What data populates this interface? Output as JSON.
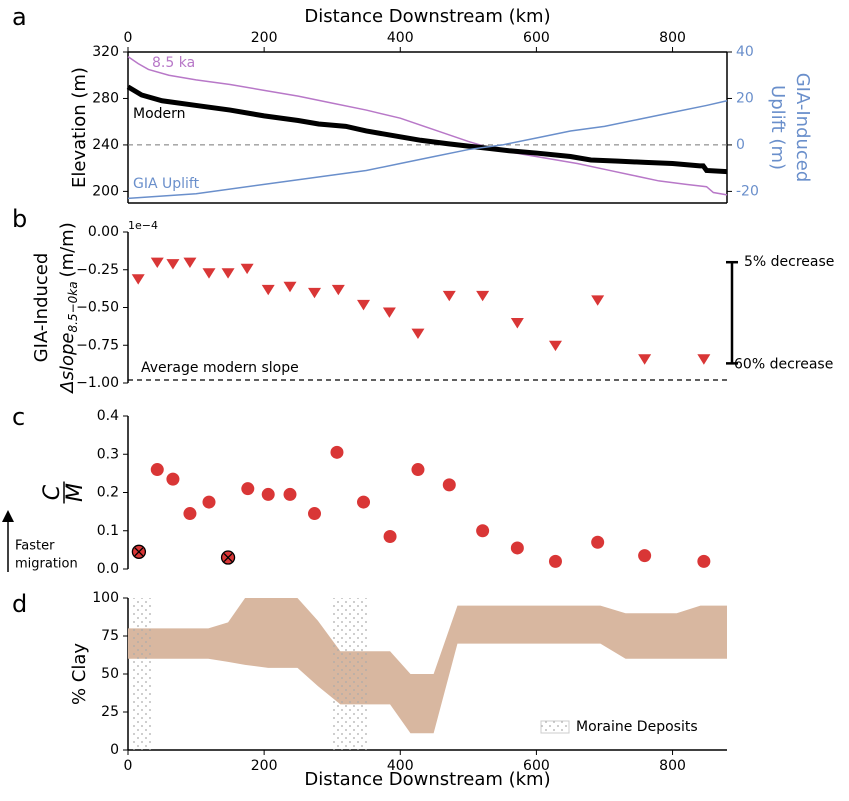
{
  "chart_data": [
    {
      "type": "line",
      "panel_label": "a",
      "xlabel": "Distance Downstream (km)",
      "xlim": [
        0,
        880
      ],
      "xticks": [
        0,
        200,
        400,
        600,
        800
      ],
      "xaxis_position": "top",
      "ylabel": "Elevation (m)",
      "ylim": [
        190,
        320
      ],
      "yticks": [
        200,
        240,
        280,
        320
      ],
      "y2label": [
        "GIA-Induced",
        "Uplift (m)"
      ],
      "y2lim": [
        -25,
        40
      ],
      "y2ticks": [
        -20,
        0,
        20,
        40
      ],
      "y2color": "#6a8fcb",
      "hline": 240,
      "series": [
        {
          "name": "8.5 ka",
          "color": "#b878c8",
          "width": 1.5,
          "x": [
            0,
            15,
            30,
            60,
            100,
            150,
            200,
            250,
            300,
            350,
            400,
            450,
            500,
            540,
            580,
            620,
            660,
            700,
            740,
            780,
            820,
            850,
            860,
            880
          ],
          "values": [
            316,
            310,
            305,
            300,
            296,
            292,
            287,
            282,
            276,
            270,
            263,
            253,
            243,
            236,
            232,
            228,
            224,
            219,
            214,
            209,
            206,
            204,
            199,
            197
          ]
        },
        {
          "name": "Modern",
          "color": "#000000",
          "width": 5,
          "x": [
            0,
            20,
            50,
            100,
            150,
            200,
            250,
            280,
            320,
            350,
            400,
            430,
            470,
            500,
            530,
            560,
            600,
            650,
            680,
            720,
            760,
            800,
            840,
            845,
            850,
            880
          ],
          "values": [
            290,
            283,
            278,
            274,
            270,
            265,
            261,
            258,
            256,
            252,
            247,
            244,
            241,
            239,
            237,
            235,
            233,
            230,
            227,
            226,
            225,
            224,
            222,
            222,
            218,
            217
          ]
        },
        {
          "name": "GIA Uplift",
          "color": "#6a8fcb",
          "width": 1.5,
          "axis": "y2",
          "x": [
            0,
            100,
            200,
            300,
            350,
            400,
            450,
            500,
            550,
            600,
            650,
            700,
            750,
            800,
            850,
            880
          ],
          "values": [
            -23,
            -21,
            -17,
            -13,
            -11,
            -8,
            -5,
            -2,
            0,
            3,
            6,
            8,
            11,
            14,
            17,
            19
          ]
        }
      ]
    },
    {
      "type": "scatter",
      "panel_label": "b",
      "marker": "triangle-down",
      "color": "#d93636",
      "xlim": [
        0,
        880
      ],
      "ylabel_lines": [
        "GIA-Induced"
      ],
      "ylabel_math": "Δslope",
      "ylabel_sub": "8.5−0ka",
      "ylabel_unit": "(m/m)",
      "offset_label": "1e−4",
      "ylim": [
        -1.0,
        0.0
      ],
      "yticks": [
        {
          "value": 0,
          "label": "0.00"
        },
        {
          "value": -0.25,
          "label": "−0.25"
        },
        {
          "value": -0.5,
          "label": "−0.50"
        },
        {
          "value": -0.75,
          "label": "−0.75"
        },
        {
          "value": -1.0,
          "label": "−1.00"
        }
      ],
      "hline": -0.98,
      "hline_label": "Average modern slope",
      "bracket": {
        "top": -0.2,
        "bottom": -0.87,
        "top_label": "5% decrease",
        "bottom_label": "60% decrease"
      },
      "x": [
        15,
        43,
        66,
        91,
        119,
        147,
        175,
        206,
        238,
        274,
        309,
        346,
        384,
        426,
        472,
        521,
        572,
        628,
        690,
        759,
        846
      ],
      "values": [
        -0.31,
        -0.2,
        -0.21,
        -0.2,
        -0.27,
        -0.27,
        -0.24,
        -0.38,
        -0.36,
        -0.4,
        -0.38,
        -0.48,
        -0.53,
        -0.67,
        -0.42,
        -0.42,
        -0.6,
        -0.75,
        -0.45,
        -0.84,
        -0.84
      ]
    },
    {
      "type": "scatter",
      "panel_label": "c",
      "xlim": [
        0,
        880
      ],
      "ylabel_num": "C",
      "ylabel_den": "M",
      "ylim": [
        0,
        0.4
      ],
      "yticks": [
        {
          "value": 0,
          "label": "0.0"
        },
        {
          "value": 0.1,
          "label": "0.1"
        },
        {
          "value": 0.2,
          "label": "0.2"
        },
        {
          "value": 0.3,
          "label": "0.3"
        },
        {
          "value": 0.4,
          "label": "0.4"
        }
      ],
      "arrow_label": [
        "Faster",
        "migration"
      ],
      "series": [
        {
          "color": "#d93636",
          "marker": "circle",
          "x": [
            43,
            66,
            91,
            119,
            176,
            206,
            238,
            274,
            307,
            346,
            385,
            426,
            472,
            521,
            572,
            628,
            690,
            759,
            846
          ],
          "values": [
            0.26,
            0.235,
            0.145,
            0.175,
            0.21,
            0.195,
            0.195,
            0.145,
            0.305,
            0.175,
            0.085,
            0.26,
            0.22,
            0.1,
            0.055,
            0.02,
            0.07,
            0.035,
            0.02
          ]
        },
        {
          "color": "#d93636",
          "marker": "circle-x",
          "x": [
            16,
            147
          ],
          "values": [
            0.045,
            0.03
          ]
        }
      ]
    },
    {
      "type": "range",
      "panel_label": "d",
      "color": "#d8b7a0",
      "xlabel": "Distance Downstream (km)",
      "xlim": [
        0,
        880
      ],
      "xticks": [
        0,
        200,
        400,
        600,
        800
      ],
      "xaxis_position": "bottom",
      "ylabel": "% Clay",
      "ylim": [
        0,
        100
      ],
      "yticks": [
        0,
        25,
        50,
        75,
        100
      ],
      "x": [
        0,
        100,
        118,
        147,
        172,
        206,
        249,
        279,
        312,
        385,
        415,
        449,
        484,
        694,
        731,
        806,
        841,
        880
      ],
      "upper": [
        80,
        80,
        80,
        84,
        100,
        100,
        100,
        85,
        65,
        65,
        50,
        50,
        95,
        95,
        90,
        90,
        95,
        95
      ],
      "lower": [
        60,
        60,
        60,
        58,
        56,
        54,
        54,
        42,
        30,
        30,
        11,
        11,
        70,
        70,
        60,
        60,
        60,
        60
      ],
      "moraine": {
        "name": "Moraine Deposits",
        "spans": [
          [
            7,
            35
          ],
          [
            301,
            353
          ]
        ]
      },
      "legend": "lower right"
    }
  ]
}
